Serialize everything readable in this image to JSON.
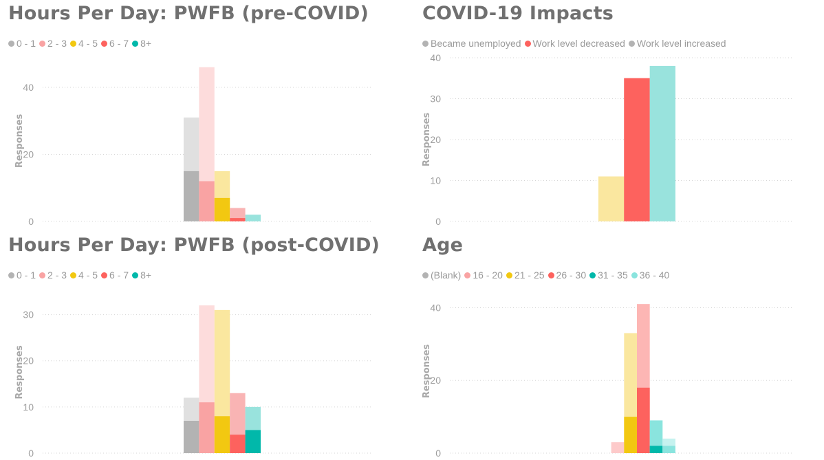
{
  "chart_data": [
    {
      "id": "pre",
      "type": "bar",
      "title": "Hours Per Day: PWFB (pre-COVID)",
      "ylabel": "Responses",
      "ylim": [
        0,
        48
      ],
      "yticks": [
        0,
        20,
        40
      ],
      "legend": [
        {
          "label": "0 - 1",
          "color": "#b3b3b3"
        },
        {
          "label": "2 - 3",
          "color": "#f9a3a3"
        },
        {
          "label": "4 - 5",
          "color": "#f2c811"
        },
        {
          "label": "6 - 7",
          "color": "#fd625e"
        },
        {
          "label": "8+",
          "color": "#01b8aa"
        }
      ],
      "categories": [
        "0 - 1",
        "2 - 3",
        "4 - 5",
        "6 - 7",
        "8+"
      ],
      "series": [
        {
          "name": "highlighted",
          "values": [
            15,
            12,
            7,
            1,
            0
          ]
        },
        {
          "name": "total",
          "values": [
            31,
            46,
            15,
            4,
            2
          ]
        }
      ],
      "bar_colors": [
        "#b3b3b3",
        "#f9a3a3",
        "#f2c811",
        "#fd625e",
        "#01b8aa"
      ],
      "bar_colors_light": [
        "#e0e0e0",
        "#fddcdc",
        "#fae79f",
        "#f9b4b4",
        "#99e3dd"
      ],
      "legend_position": "top-left"
    },
    {
      "id": "impacts",
      "type": "bar",
      "title": "COVID-19 Impacts",
      "ylabel": "Responses",
      "ylim": [
        0,
        40
      ],
      "yticks": [
        0,
        10,
        20,
        30,
        40
      ],
      "legend": [
        {
          "label": "Became unemployed",
          "color": "#b3b3b3"
        },
        {
          "label": "Work level decreased",
          "color": "#fd625e"
        },
        {
          "label": "Work level increased",
          "color": "#b3b3b3"
        }
      ],
      "categories": [
        "Became unemployed",
        "Work level decreased",
        "Work level increased"
      ],
      "series": [
        {
          "name": "highlighted",
          "values": [
            0,
            35,
            0
          ]
        },
        {
          "name": "total",
          "values": [
            11,
            35,
            38
          ]
        }
      ],
      "bar_colors": [
        "#f2c811",
        "#fd625e",
        "#8ad4eb"
      ],
      "bar_colors_light": [
        "#fae79f",
        "#fd625e",
        "#99e3dd"
      ],
      "legend_position": "top-left"
    },
    {
      "id": "post",
      "type": "bar",
      "title": "Hours Per Day: PWFB (post-COVID)",
      "ylabel": "Responses",
      "ylim": [
        0,
        35
      ],
      "yticks": [
        0,
        10,
        20,
        30
      ],
      "legend": [
        {
          "label": "0 - 1",
          "color": "#b3b3b3"
        },
        {
          "label": "2 - 3",
          "color": "#f9a3a3"
        },
        {
          "label": "4 - 5",
          "color": "#f2c811"
        },
        {
          "label": "6 - 7",
          "color": "#fd625e"
        },
        {
          "label": "8+",
          "color": "#01b8aa"
        }
      ],
      "categories": [
        "0 - 1",
        "2 - 3",
        "4 - 5",
        "6 - 7",
        "8+"
      ],
      "series": [
        {
          "name": "highlighted",
          "values": [
            7,
            11,
            8,
            4,
            5
          ]
        },
        {
          "name": "total",
          "values": [
            12,
            32,
            31,
            13,
            10
          ]
        }
      ],
      "bar_colors": [
        "#b3b3b3",
        "#f9a3a3",
        "#f2c811",
        "#fd625e",
        "#01b8aa"
      ],
      "bar_colors_light": [
        "#e0e0e0",
        "#fddcdc",
        "#fae79f",
        "#f9b4b4",
        "#99e3dd"
      ],
      "legend_position": "top-left"
    },
    {
      "id": "age",
      "type": "bar",
      "title": "Age",
      "ylabel": "Responses",
      "ylim": [
        0,
        45
      ],
      "yticks": [
        0,
        20,
        40
      ],
      "legend": [
        {
          "label": "(Blank)",
          "color": "#b3b3b3"
        },
        {
          "label": "16 - 20",
          "color": "#f9a3a3"
        },
        {
          "label": "21 - 25",
          "color": "#f2c811"
        },
        {
          "label": "26 - 30",
          "color": "#fd625e"
        },
        {
          "label": "31 - 35",
          "color": "#01b8aa"
        },
        {
          "label": "36 - 40",
          "color": "#8ae4de"
        }
      ],
      "categories": [
        "(Blank)",
        "16 - 20",
        "21 - 25",
        "26 - 30",
        "31 - 35",
        "36 - 40"
      ],
      "series": [
        {
          "name": "highlighted",
          "values": [
            0,
            0,
            10,
            18,
            2,
            2
          ]
        },
        {
          "name": "total",
          "values": [
            0,
            3,
            33,
            41,
            9,
            4
          ]
        }
      ],
      "bar_colors": [
        "#b3b3b3",
        "#f9a3a3",
        "#f2c811",
        "#fd625e",
        "#01b8aa",
        "#8ae4de"
      ],
      "bar_colors_light": [
        "#e0e0e0",
        "#fdcaca",
        "#fae79f",
        "#fdb6b4",
        "#8ae4de",
        "#c6f2ef"
      ],
      "legend_position": "top-left"
    }
  ]
}
